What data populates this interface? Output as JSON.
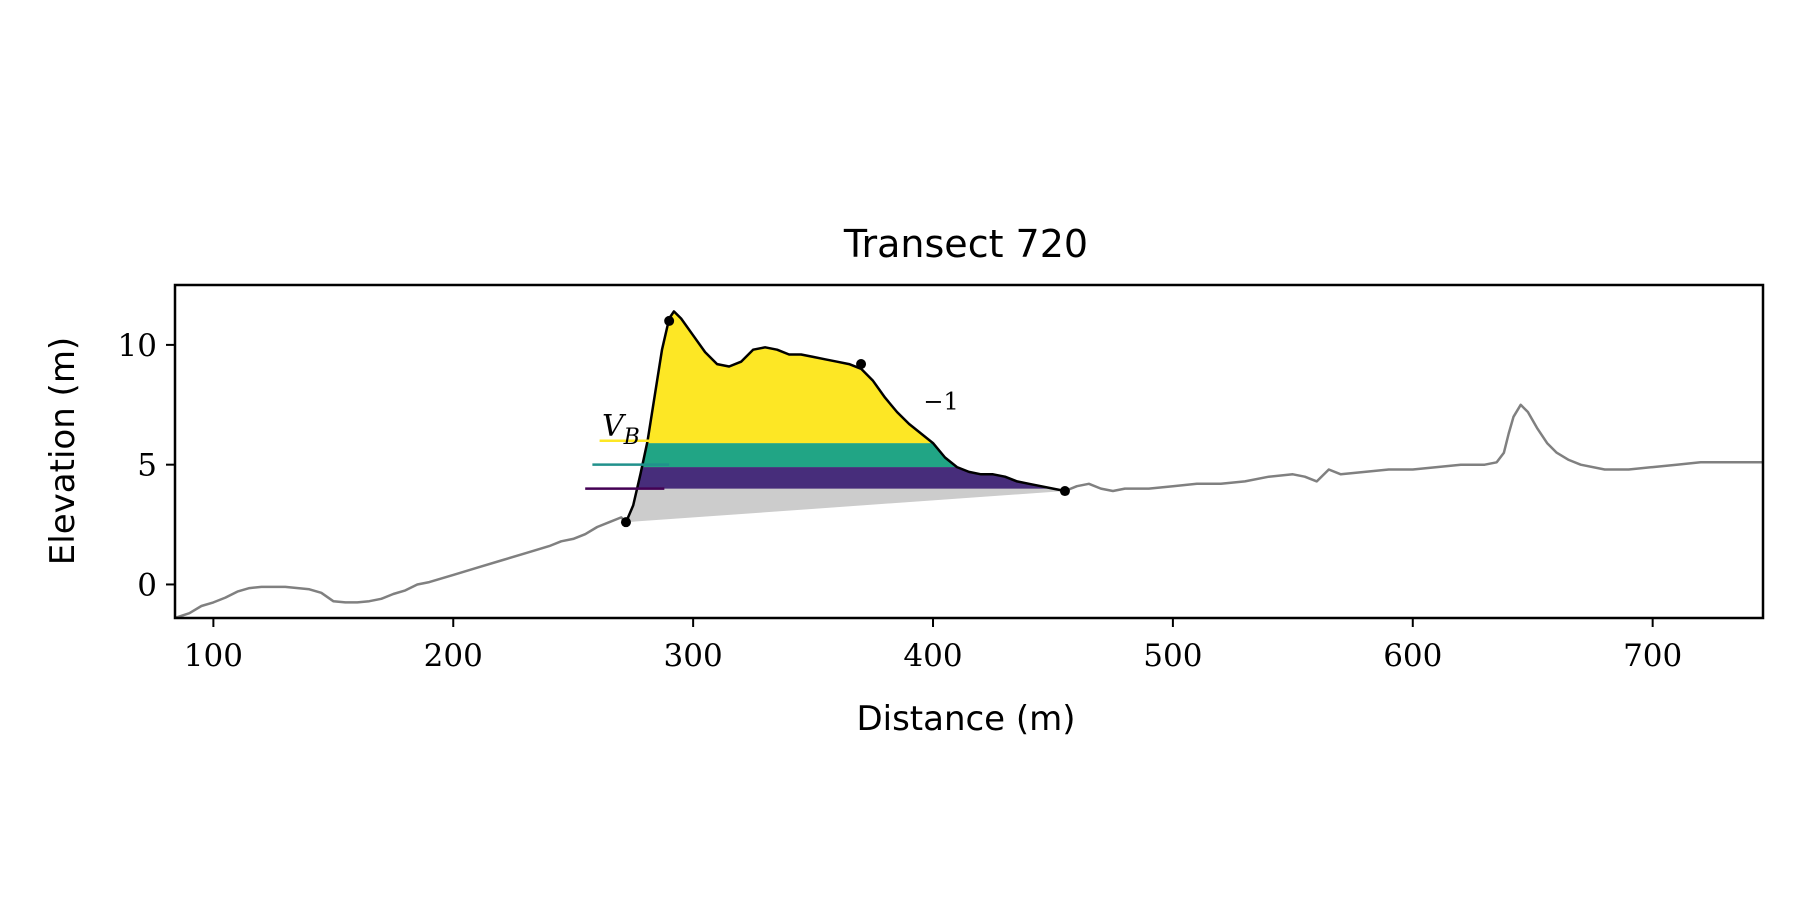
{
  "chart_data": {
    "type": "area",
    "title": "Transect 720",
    "xlabel": "Distance (m)",
    "ylabel": "Elevation (m)",
    "xlim": [
      84,
      746
    ],
    "ylim": [
      -1.4,
      12.5
    ],
    "xticks": [
      100,
      200,
      300,
      400,
      500,
      600,
      700
    ],
    "yticks": [
      0,
      5,
      10
    ],
    "grid": false,
    "legend": "none",
    "annotations": [
      {
        "text": "V",
        "sub": "B",
        "x": 262,
        "y": 6.2
      },
      {
        "text": "−1",
        "x": 396,
        "y": 7.3
      }
    ],
    "profile": {
      "color": "#808080",
      "x": [
        84,
        90,
        95,
        100,
        105,
        110,
        115,
        120,
        130,
        140,
        145,
        150,
        155,
        160,
        165,
        170,
        175,
        180,
        185,
        190,
        200,
        210,
        220,
        230,
        240,
        245,
        250,
        255,
        260,
        265,
        270,
        272
      ],
      "y": [
        -1.4,
        -1.2,
        -0.9,
        -0.75,
        -0.55,
        -0.3,
        -0.15,
        -0.1,
        -0.1,
        -0.2,
        -0.35,
        -0.7,
        -0.75,
        -0.75,
        -0.7,
        -0.6,
        -0.4,
        -0.25,
        0.0,
        0.1,
        0.4,
        0.7,
        1.0,
        1.3,
        1.6,
        1.8,
        1.9,
        2.1,
        2.4,
        2.6,
        2.8,
        2.6
      ]
    },
    "profile_land": {
      "color": "#808080",
      "x": [
        455,
        460,
        465,
        470,
        475,
        480,
        490,
        500,
        510,
        520,
        530,
        540,
        550,
        555,
        560,
        565,
        570,
        580,
        590,
        600,
        610,
        620,
        630,
        635,
        638,
        640,
        642,
        645,
        648,
        652,
        656,
        660,
        665,
        670,
        680,
        690,
        700,
        710,
        720,
        730,
        746
      ],
      "y": [
        3.9,
        4.1,
        4.2,
        4.0,
        3.9,
        4.0,
        4.0,
        4.1,
        4.2,
        4.2,
        4.3,
        4.5,
        4.6,
        4.5,
        4.3,
        4.8,
        4.6,
        4.7,
        4.8,
        4.8,
        4.9,
        5.0,
        5.0,
        5.1,
        5.5,
        6.3,
        7.0,
        7.5,
        7.2,
        6.5,
        5.9,
        5.5,
        5.2,
        5.0,
        4.8,
        4.8,
        4.9,
        5.0,
        5.1,
        5.1,
        5.1
      ]
    },
    "dune": {
      "color": "#000000",
      "x": [
        272,
        275,
        278,
        281,
        284,
        287,
        290,
        292,
        295,
        300,
        305,
        310,
        315,
        320,
        325,
        330,
        335,
        340,
        345,
        350,
        355,
        360,
        365,
        370,
        375,
        380,
        385,
        390,
        395,
        400,
        405,
        410,
        415,
        420,
        425,
        430,
        435,
        440,
        445,
        450,
        455
      ],
      "y": [
        2.6,
        3.3,
        4.6,
        6.0,
        7.9,
        9.8,
        11.1,
        11.4,
        11.1,
        10.4,
        9.7,
        9.2,
        9.1,
        9.3,
        9.8,
        9.9,
        9.8,
        9.6,
        9.6,
        9.5,
        9.4,
        9.3,
        9.2,
        9.0,
        8.5,
        7.8,
        7.2,
        6.7,
        6.3,
        5.9,
        5.3,
        4.9,
        4.7,
        4.6,
        4.6,
        4.5,
        4.3,
        4.2,
        4.1,
        4.0,
        3.9
      ]
    },
    "points": [
      {
        "x": 272,
        "y": 2.6
      },
      {
        "x": 290,
        "y": 11.0
      },
      {
        "x": 370,
        "y": 9.2
      },
      {
        "x": 455,
        "y": 3.9
      }
    ],
    "toe_line": {
      "x": [
        272,
        455
      ],
      "y": [
        2.6,
        3.9
      ]
    },
    "bands": [
      {
        "y_bottom": 4.0,
        "y_top": 4.9,
        "color": "#472D7B"
      },
      {
        "y_bottom": 4.9,
        "y_top": 5.9,
        "color": "#21A585"
      },
      {
        "y_bottom": 5.9,
        "y_top": 12.5,
        "color": "#FDE725"
      }
    ],
    "base_fill_color": "#CCCCCC",
    "level_lines": [
      {
        "y": 4.0,
        "x_start": 255,
        "x_end": 288,
        "color": "#440154"
      },
      {
        "y": 5.0,
        "x_start": 258,
        "x_end": 290,
        "color": "#21918C"
      },
      {
        "y": 6.0,
        "x_start": 261,
        "x_end": 291,
        "color": "#FDE725"
      }
    ]
  }
}
